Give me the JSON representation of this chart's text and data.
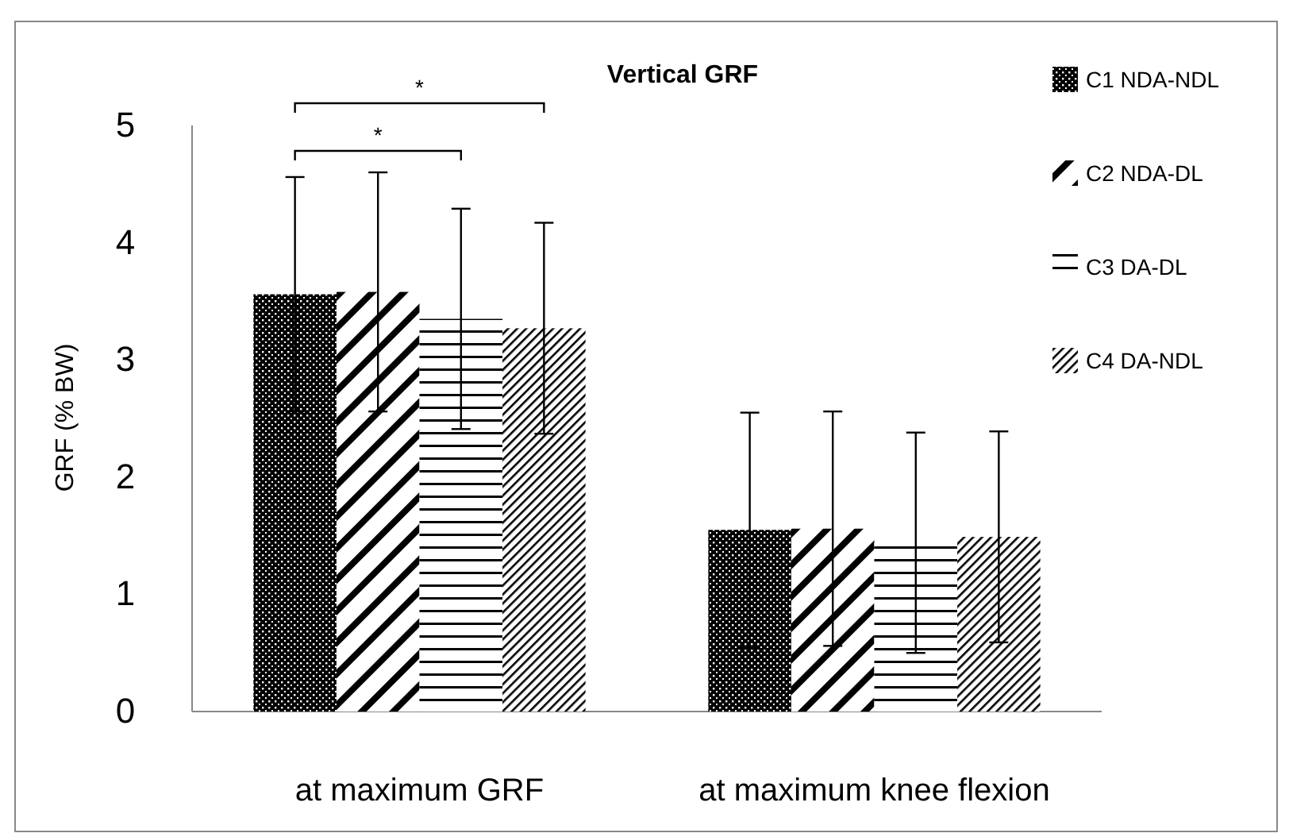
{
  "chart_data": {
    "type": "bar",
    "title": "Vertical GRF",
    "ylabel": "GRF (% BW)",
    "categories": [
      "at maximum GRF",
      "at maximum knee flexion"
    ],
    "series": [
      {
        "name": "C1 NDA-NDL",
        "color": "#000000",
        "values": [
          3.56,
          1.55
        ],
        "errors": [
          1.0,
          1.0
        ]
      },
      {
        "name": "C2 NDA-DL",
        "color": "#000000",
        "values": [
          3.58,
          1.56
        ],
        "errors": [
          1.02,
          1.0
        ]
      },
      {
        "name": "C3 DA-DL",
        "color": "#000000",
        "values": [
          3.35,
          1.44
        ],
        "errors": [
          0.94,
          0.94
        ]
      },
      {
        "name": "C4 DA-NDL",
        "color": "#000000",
        "values": [
          3.27,
          1.49
        ],
        "errors": [
          0.9,
          0.9
        ]
      }
    ],
    "ylim": [
      0,
      5
    ],
    "yticks": [
      0,
      1,
      2,
      3,
      4,
      5
    ],
    "grid": false,
    "legend": "top right",
    "annotations": [
      "*",
      "*"
    ]
  }
}
